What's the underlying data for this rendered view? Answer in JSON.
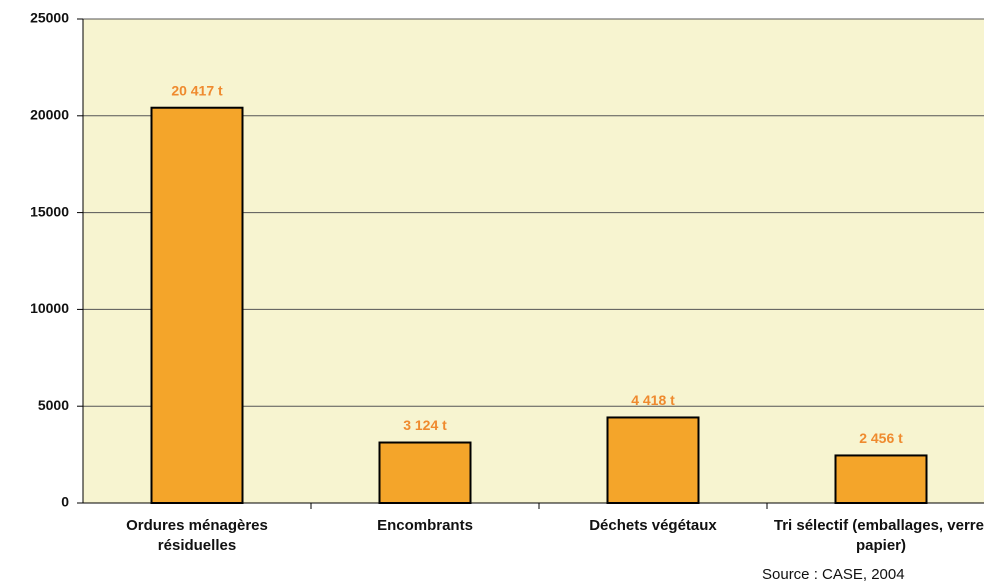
{
  "chart_data": {
    "type": "bar",
    "categories": [
      "Ordures ménagères résiduelles",
      "Encombrants",
      "Déchets végétaux",
      "Tri sélectif (emballages, verre, papier)"
    ],
    "values": [
      20417,
      3124,
      4418,
      2456
    ],
    "value_labels": [
      "20 417 t",
      "3 124 t",
      "4 418 t",
      "2 456 t"
    ],
    "color": "#f4a52a",
    "ylim": [
      0,
      25000
    ],
    "yticks": [
      0,
      5000,
      10000,
      15000,
      20000,
      25000
    ],
    "grid": true,
    "source": "Source : CASE, 2004"
  }
}
